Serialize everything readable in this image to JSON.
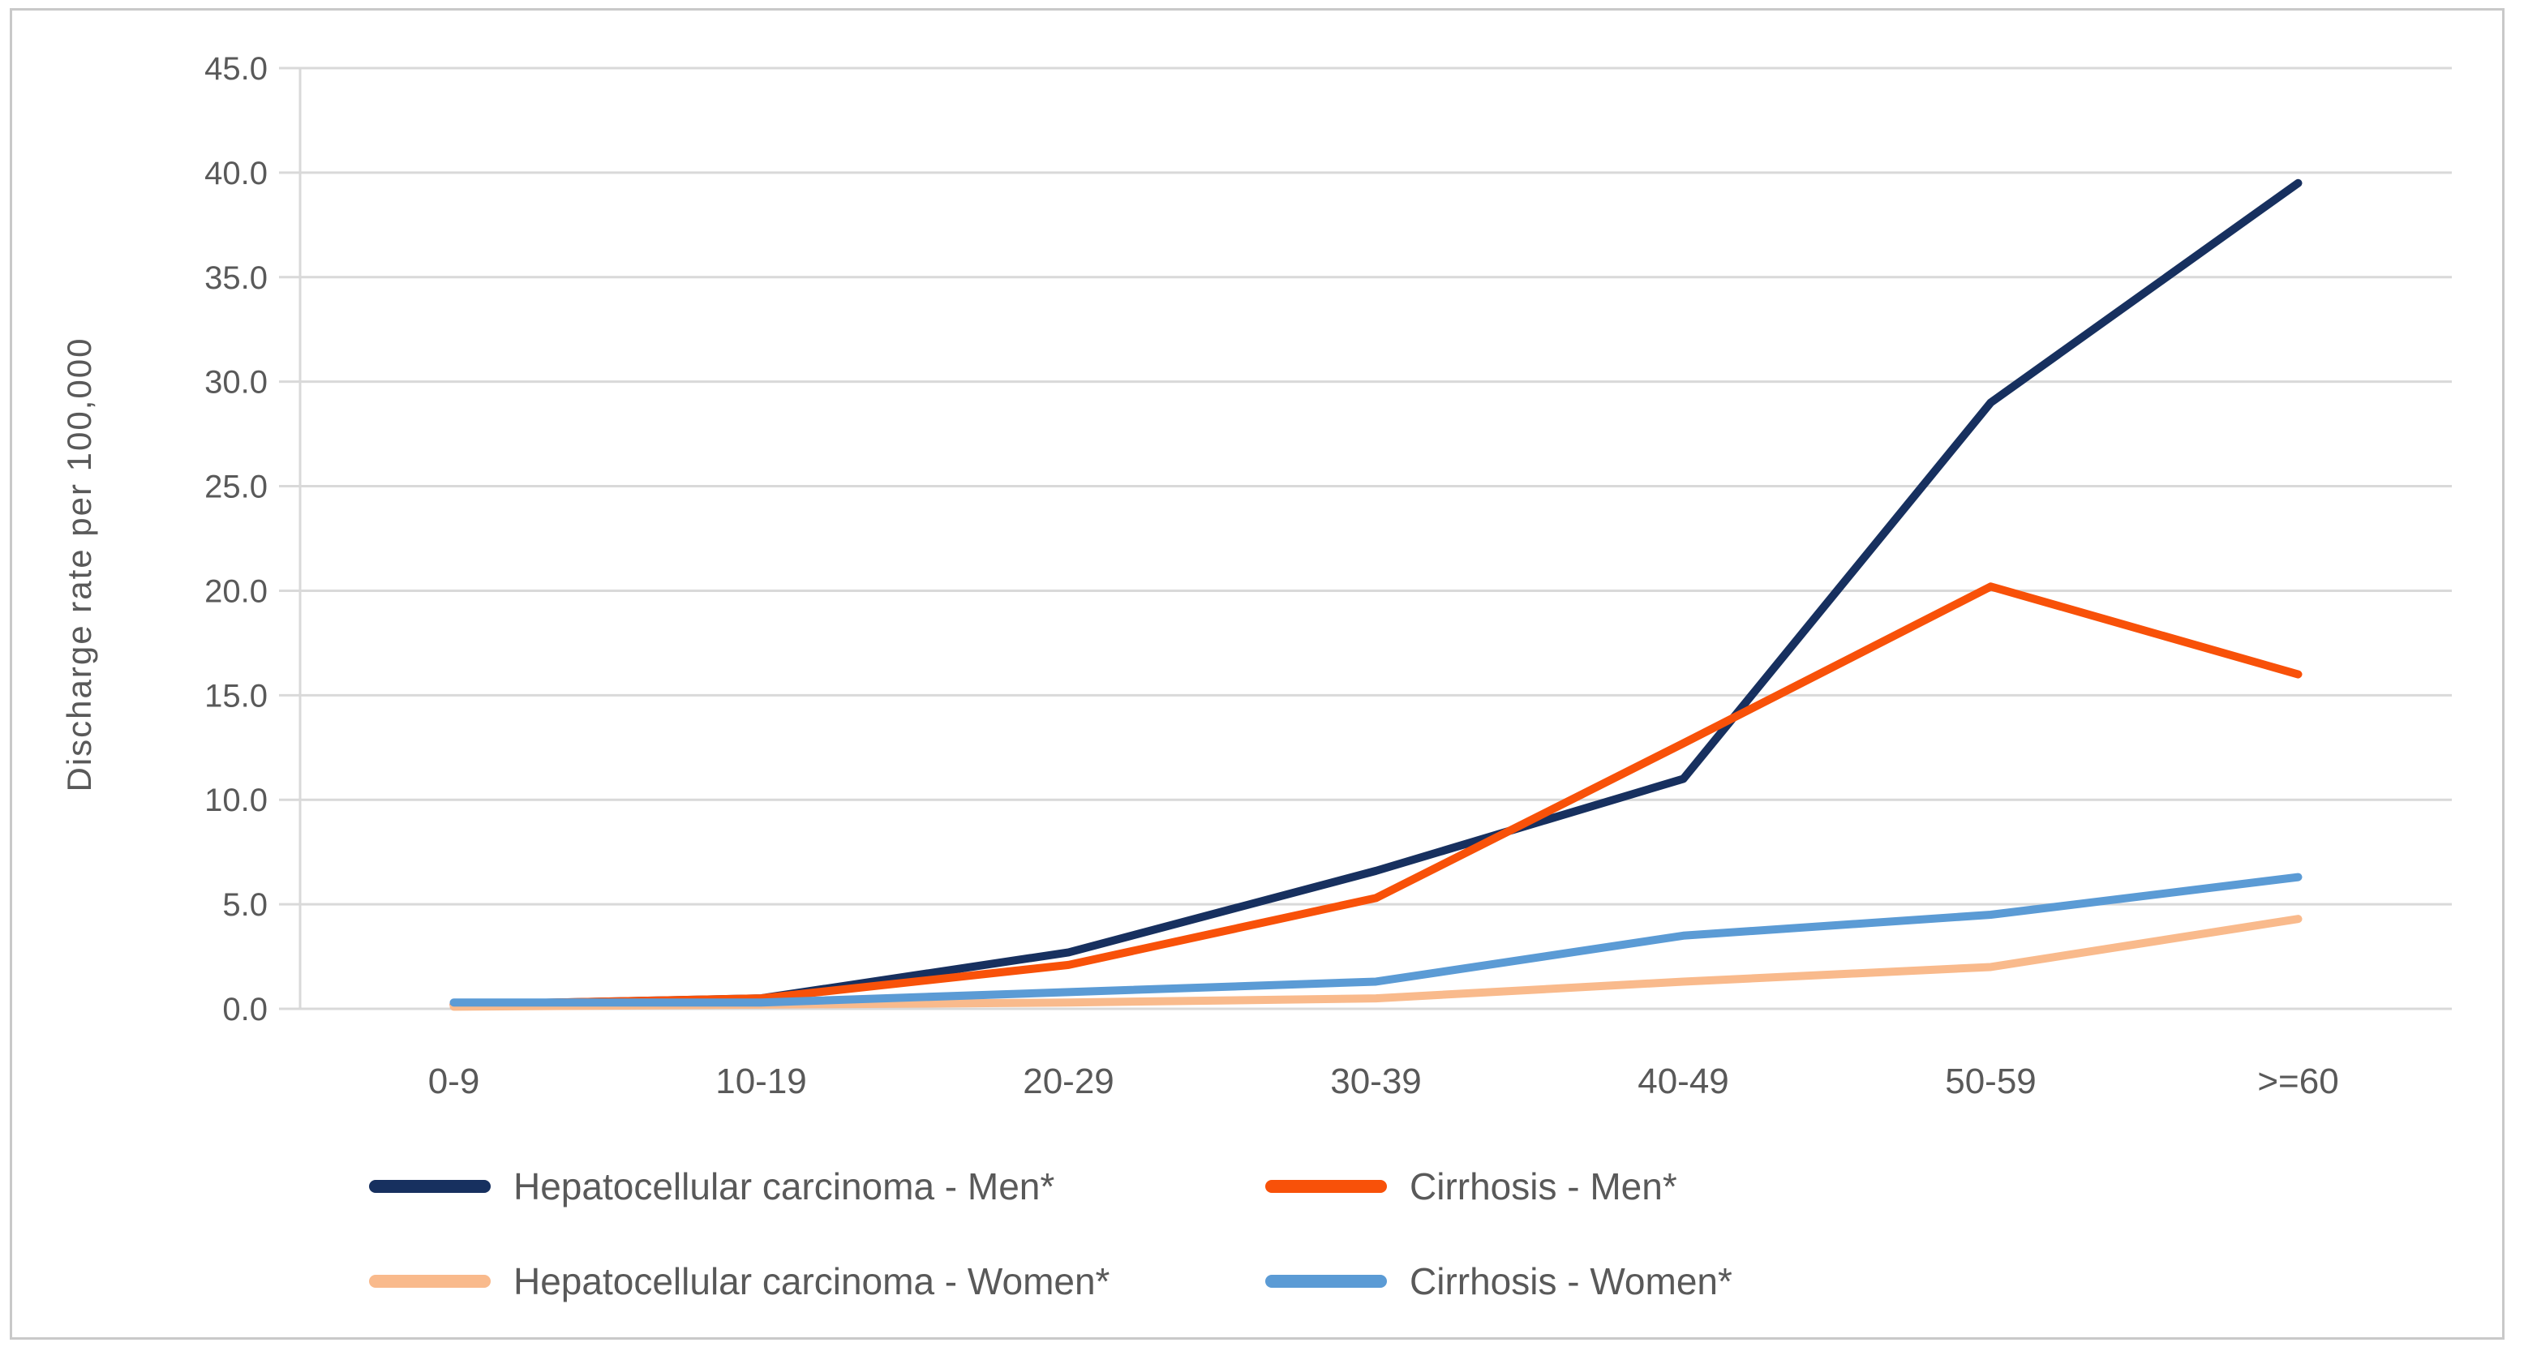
{
  "chart_data": {
    "type": "line",
    "title": "",
    "xlabel": "",
    "ylabel": "Discharge rate per 100,000",
    "categories": [
      "0-9",
      "10-19",
      "20-29",
      "30-39",
      "40-49",
      "50-59",
      ">=60"
    ],
    "ylim": [
      0,
      45
    ],
    "ytick_step": 5,
    "ytick_labels": [
      "0.0",
      "5.0",
      "10.0",
      "15.0",
      "20.0",
      "25.0",
      "30.0",
      "35.0",
      "40.0",
      "45.0"
    ],
    "grid": true,
    "legend_position": "bottom",
    "series": [
      {
        "name": "Hepatocellular carcinoma - Men*",
        "color": "#17305f",
        "values": [
          0.2,
          0.5,
          2.7,
          6.6,
          11.0,
          29.0,
          39.5
        ]
      },
      {
        "name": "Cirrhosis - Men*",
        "color": "#f85109",
        "values": [
          0.2,
          0.5,
          2.1,
          5.3,
          12.7,
          20.2,
          16.0
        ]
      },
      {
        "name": "Hepatocellular carcinoma - Women*",
        "color": "#f9ba8c",
        "values": [
          0.1,
          0.2,
          0.3,
          0.5,
          1.3,
          2.0,
          4.3
        ]
      },
      {
        "name": "Cirrhosis - Women*",
        "color": "#5b9bd5",
        "values": [
          0.3,
          0.3,
          0.8,
          1.3,
          3.5,
          4.5,
          6.3
        ]
      }
    ],
    "colors": {
      "gridline": "#d9d9d9",
      "axis_text": "#595959",
      "frame_border": "#c9c9c9",
      "background": "#ffffff"
    }
  }
}
